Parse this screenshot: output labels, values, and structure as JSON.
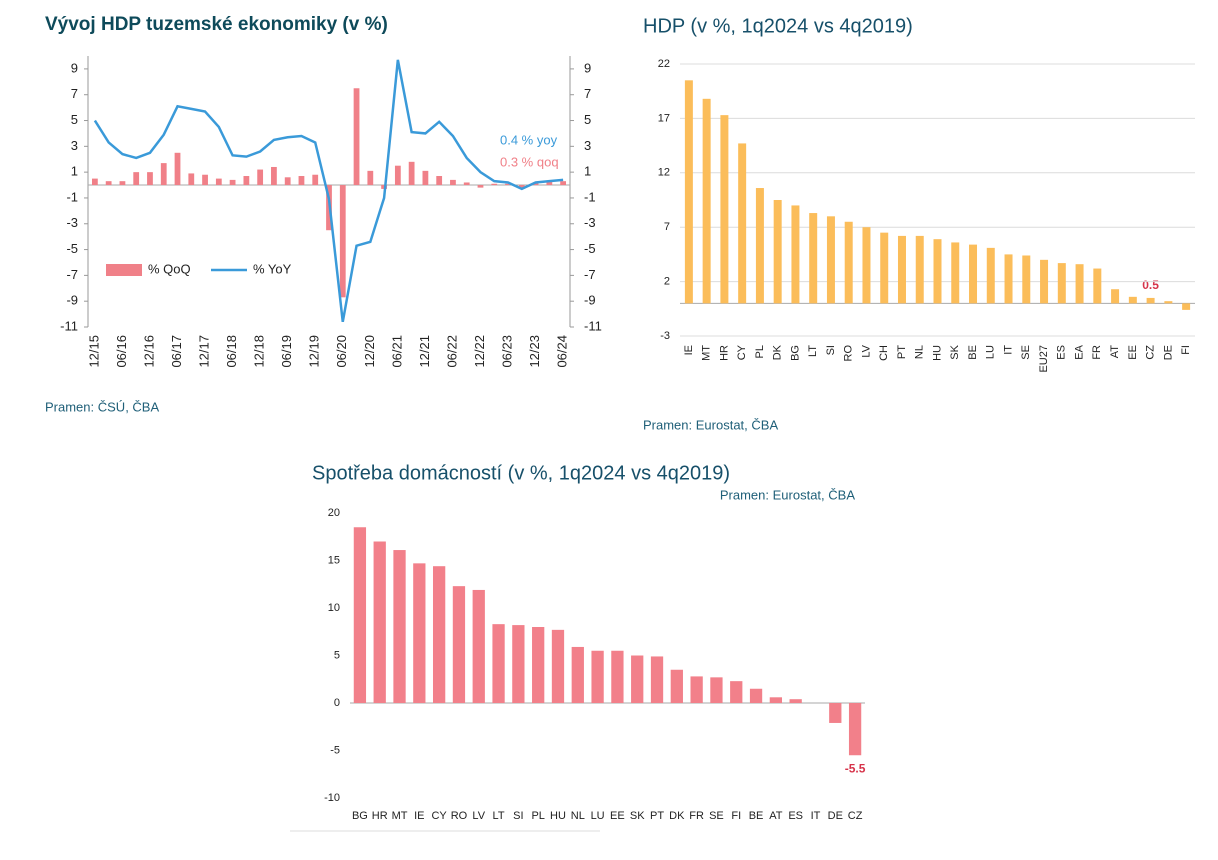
{
  "chart_data": [
    {
      "type": "bar",
      "title": "Vývoj HDP tuzemské ekonomiky (v %)",
      "source": "Pramen: ČSÚ, ČBA",
      "categories": [
        "12/15",
        null,
        "06/16",
        null,
        "12/16",
        null,
        "06/17",
        null,
        "12/17",
        null,
        "06/18",
        null,
        "12/18",
        null,
        "06/19",
        null,
        "12/19",
        null,
        "06/20",
        null,
        "12/20",
        null,
        "06/21",
        null,
        "12/21",
        null,
        "06/22",
        null,
        "12/22",
        null,
        "06/23",
        null,
        "12/23",
        null,
        "06/24"
      ],
      "series": [
        {
          "name": "% QoQ",
          "type": "bar",
          "color": "#f08088",
          "values": [
            0.5,
            0.3,
            0.3,
            1.0,
            1.0,
            1.7,
            2.5,
            0.9,
            0.8,
            0.5,
            0.4,
            0.7,
            1.2,
            1.4,
            0.6,
            0.7,
            0.8,
            -3.5,
            -8.7,
            7.5,
            1.1,
            -0.3,
            1.5,
            1.8,
            1.1,
            0.7,
            0.4,
            0.2,
            -0.2,
            0.1,
            0.1,
            -0.3,
            0.2,
            0.3,
            0.3
          ]
        },
        {
          "name": "% YoY",
          "type": "line",
          "color": "#3a9ad9",
          "values": [
            5.0,
            3.3,
            2.4,
            2.1,
            2.5,
            3.9,
            6.1,
            5.9,
            5.7,
            4.5,
            2.3,
            2.2,
            2.6,
            3.5,
            3.7,
            3.8,
            3.3,
            -1.1,
            -10.6,
            -4.7,
            -4.4,
            -1.0,
            9.7,
            4.1,
            4.0,
            4.9,
            3.8,
            2.1,
            1.0,
            0.3,
            0.2,
            -0.3,
            0.2,
            0.3,
            0.4
          ]
        }
      ],
      "ylim": [
        -11,
        10
      ],
      "yticks": [
        9,
        7,
        5,
        3,
        1,
        -1,
        -3,
        -5,
        -7,
        -9,
        -11
      ],
      "y2lim": [
        -11,
        10
      ],
      "y2ticks": [
        9,
        7,
        5,
        3,
        1,
        -1,
        -3,
        -5,
        -7,
        -9,
        -11
      ],
      "annotations": [
        "0.4 % yoy",
        "0.3 % qoq"
      ],
      "legend": "lower left",
      "grid": false
    },
    {
      "type": "bar",
      "title": "HDP (v %, 1q2024 vs 4q2019)",
      "source": "Pramen: Eurostat, ČBA",
      "categories": [
        "IE",
        "MT",
        "HR",
        "CY",
        "PL",
        "DK",
        "BG",
        "LT",
        "SI",
        "RO",
        "LV",
        "CH",
        "PT",
        "NL",
        "HU",
        "SK",
        "BE",
        "LU",
        "IT",
        "SE",
        "EU27",
        "ES",
        "EA",
        "FR",
        "AT",
        "EE",
        "CZ",
        "DE",
        "FI"
      ],
      "values": [
        20.5,
        18.8,
        17.3,
        14.7,
        10.6,
        9.5,
        9.0,
        8.3,
        8.0,
        7.5,
        7.0,
        6.5,
        6.2,
        6.2,
        5.9,
        5.6,
        5.4,
        5.1,
        4.5,
        4.4,
        4.0,
        3.7,
        3.6,
        3.2,
        1.3,
        0.6,
        0.5,
        0.2,
        -0.6
      ],
      "color": "#fbbd5a",
      "ylim": [
        -3,
        22
      ],
      "yticks": [
        22,
        17,
        12,
        7,
        2,
        -3
      ],
      "grid": true
    },
    {
      "type": "bar",
      "title": "Spotřeba domácností (v %, 1q2024 vs 4q2019)",
      "source": "Pramen: Eurostat, ČBA",
      "categories": [
        "BG",
        "HR",
        "MT",
        "IE",
        "CY",
        "RO",
        "LV",
        "LT",
        "SI",
        "PL",
        "HU",
        "NL",
        "LU",
        "EE",
        "SK",
        "PT",
        "DK",
        "FR",
        "SE",
        "FI",
        "BE",
        "AT",
        "ES",
        "IT",
        "DE",
        "CZ"
      ],
      "values": [
        18.5,
        17.0,
        16.1,
        14.7,
        14.4,
        12.3,
        11.9,
        8.3,
        8.2,
        8.0,
        7.7,
        5.9,
        5.5,
        5.5,
        5.0,
        4.9,
        3.5,
        2.8,
        2.7,
        2.3,
        1.5,
        0.6,
        0.4,
        0.0,
        -2.1,
        -5.5
      ],
      "color": "#f2808a",
      "ylim": [
        -10,
        20
      ],
      "yticks": [
        20,
        15,
        10,
        5,
        0,
        -5,
        -10
      ],
      "grid": false
    }
  ]
}
